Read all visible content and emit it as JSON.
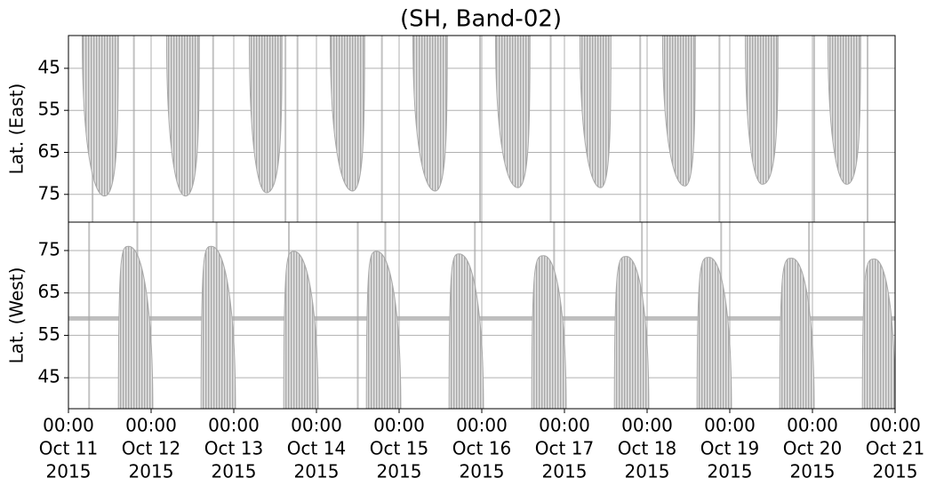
{
  "chart_data": [
    {
      "type": "coverage",
      "title": "(SH, Band-02)",
      "ylabel": "Lat. (East)",
      "xlim": [
        "2015-10-11 00:00",
        "2015-10-21 00:00"
      ],
      "ylim": [
        37.2,
        81.6
      ],
      "inverted": true,
      "yticks": [
        45,
        55,
        65,
        75
      ],
      "grid": true,
      "color": "#a9a9a9",
      "lobes": [
        {
          "start": "2015-10-11 04:00",
          "tip": "2015-10-11 10:30",
          "end": "2015-10-11 14:30",
          "lat": 75.4
        },
        {
          "start": "2015-10-12 04:30",
          "tip": "2015-10-12 10:00",
          "end": "2015-10-12 14:00",
          "lat": 75.4
        },
        {
          "start": "2015-10-13 04:30",
          "tip": "2015-10-13 09:30",
          "end": "2015-10-13 14:00",
          "lat": 74.6
        },
        {
          "start": "2015-10-14 04:00",
          "tip": "2015-10-14 10:30",
          "end": "2015-10-14 14:00",
          "lat": 74.2
        },
        {
          "start": "2015-10-15 04:00",
          "tip": "2015-10-15 10:30",
          "end": "2015-10-15 14:00",
          "lat": 74.2
        },
        {
          "start": "2015-10-16 04:00",
          "tip": "2015-10-16 10:30",
          "end": "2015-10-16 14:00",
          "lat": 73.4
        },
        {
          "start": "2015-10-17 04:30",
          "tip": "2015-10-17 10:30",
          "end": "2015-10-17 13:30",
          "lat": 73.4
        },
        {
          "start": "2015-10-18 04:30",
          "tip": "2015-10-18 11:00",
          "end": "2015-10-18 14:00",
          "lat": 73.0
        },
        {
          "start": "2015-10-19 04:30",
          "tip": "2015-10-19 09:30",
          "end": "2015-10-19 14:00",
          "lat": 72.6
        },
        {
          "start": "2015-10-20 04:30",
          "tip": "2015-10-20 10:00",
          "end": "2015-10-20 14:00",
          "lat": 72.6
        }
      ],
      "tracks": [
        "2015-10-11 07:00",
        "2015-10-11 19:00",
        "2015-10-12 18:00",
        "2015-10-13 15:00",
        "2015-10-13 18:30",
        "2015-10-14 19:00",
        "2015-10-15 23:30",
        "2015-10-16 20:00",
        "2015-10-17 22:00",
        "2015-10-18 21:00",
        "2015-10-20 00:30",
        "2015-10-20 16:00"
      ]
    },
    {
      "type": "coverage",
      "ylabel": "Lat. (West)",
      "xlim": [
        "2015-10-11 00:00",
        "2015-10-21 00:00"
      ],
      "xticks": [
        {
          "value": "2015-10-11 00:00",
          "label": [
            "00:00",
            "Oct 11",
            "2015"
          ]
        },
        {
          "value": "2015-10-12 00:00",
          "label": [
            "00:00",
            "Oct 12",
            "2015"
          ]
        },
        {
          "value": "2015-10-13 00:00",
          "label": [
            "00:00",
            "Oct 13",
            "2015"
          ]
        },
        {
          "value": "2015-10-14 00:00",
          "label": [
            "00:00",
            "Oct 14",
            "2015"
          ]
        },
        {
          "value": "2015-10-15 00:00",
          "label": [
            "00:00",
            "Oct 15",
            "2015"
          ]
        },
        {
          "value": "2015-10-16 00:00",
          "label": [
            "00:00",
            "Oct 16",
            "2015"
          ]
        },
        {
          "value": "2015-10-17 00:00",
          "label": [
            "00:00",
            "Oct 17",
            "2015"
          ]
        },
        {
          "value": "2015-10-18 00:00",
          "label": [
            "00:00",
            "Oct 18",
            "2015"
          ]
        },
        {
          "value": "2015-10-19 00:00",
          "label": [
            "00:00",
            "Oct 19",
            "2015"
          ]
        },
        {
          "value": "2015-10-20 00:00",
          "label": [
            "00:00",
            "Oct 20",
            "2015"
          ]
        },
        {
          "value": "2015-10-21 00:00",
          "label": [
            "00:00",
            "Oct 21",
            "2015"
          ]
        }
      ],
      "ylim": [
        37.7,
        81.7
      ],
      "inverted": false,
      "yticks": [
        45,
        55,
        65,
        75
      ],
      "grid": true,
      "color": "#a9a9a9",
      "track_lat": 59,
      "lobes": [
        {
          "start": "2015-10-11 14:30",
          "tip": "2015-10-11 17:30",
          "end": "2015-10-12 00:30",
          "lat": 76.0
        },
        {
          "start": "2015-10-12 14:30",
          "tip": "2015-10-12 17:30",
          "end": "2015-10-13 00:30",
          "lat": 76.0
        },
        {
          "start": "2015-10-13 14:30",
          "tip": "2015-10-13 17:30",
          "end": "2015-10-14 00:30",
          "lat": 74.8
        },
        {
          "start": "2015-10-14 14:30",
          "tip": "2015-10-14 17:30",
          "end": "2015-10-15 00:30",
          "lat": 74.8
        },
        {
          "start": "2015-10-15 14:30",
          "tip": "2015-10-15 17:30",
          "end": "2015-10-16 00:30",
          "lat": 74.2
        },
        {
          "start": "2015-10-16 14:30",
          "tip": "2015-10-16 18:00",
          "end": "2015-10-17 00:30",
          "lat": 73.8
        },
        {
          "start": "2015-10-17 14:30",
          "tip": "2015-10-17 18:00",
          "end": "2015-10-18 00:30",
          "lat": 73.6
        },
        {
          "start": "2015-10-18 14:30",
          "tip": "2015-10-18 18:00",
          "end": "2015-10-19 00:30",
          "lat": 73.4
        },
        {
          "start": "2015-10-19 14:30",
          "tip": "2015-10-19 18:00",
          "end": "2015-10-20 00:30",
          "lat": 73.2
        },
        {
          "start": "2015-10-20 14:30",
          "tip": "2015-10-20 18:00",
          "end": "2015-10-21 00:00",
          "lat": 73.0
        }
      ],
      "tracks": [
        "2015-10-11 06:00",
        "2015-10-11 20:00",
        "2015-10-12 19:00",
        "2015-10-13 16:00",
        "2015-10-14 12:00",
        "2015-10-14 20:00",
        "2015-10-15 22:00",
        "2015-10-16 21:00",
        "2015-10-17 22:30",
        "2015-10-18 21:30",
        "2015-10-19 23:00",
        "2015-10-20 15:00"
      ]
    }
  ]
}
